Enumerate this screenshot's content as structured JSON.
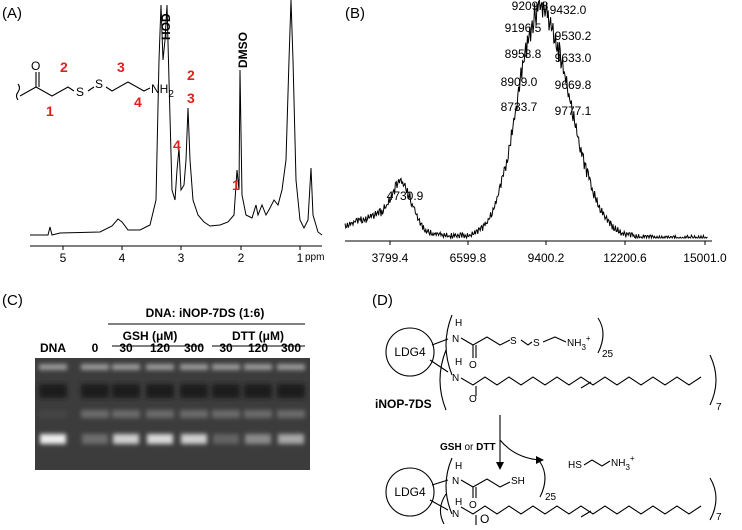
{
  "panel_a": {
    "label": "(A)",
    "ticks": [
      "5",
      "4",
      "3",
      "2",
      "1"
    ],
    "unit": "ppm",
    "solvent_peaks": [
      "HOD",
      "DMSO"
    ],
    "peak_numbers": [
      "2",
      "3",
      "4",
      "1"
    ],
    "structure": {
      "carbonyl": "O",
      "sulfur_1": "S",
      "sulfur_2": "S",
      "amine": "NH",
      "amine_sub": "2",
      "positions": [
        "1",
        "2",
        "3",
        "4"
      ]
    }
  },
  "panel_b": {
    "label": "(B)",
    "ticks": [
      "3799.4",
      "6599.8",
      "9400.2",
      "12200.6",
      "15001.0"
    ],
    "peaks": [
      "4730.9",
      "9209.8",
      "9432.0",
      "9196.5",
      "9530.2",
      "8958.8",
      "9633.0",
      "8909.0",
      "9669.8",
      "8733.7",
      "9777.1"
    ]
  },
  "panel_c": {
    "label": "(C)",
    "header": "DNA: iNOP-7DS (1:6)",
    "groups": [
      "GSH (μM)",
      "DTT (μM)"
    ],
    "lanes": [
      "DNA",
      "0",
      "30",
      "120",
      "300",
      "30",
      "120",
      "300"
    ]
  },
  "panel_d": {
    "label": "(D)",
    "reactant": {
      "core": "LDG4",
      "h1": "H",
      "n1": "N",
      "o1": "O",
      "s1": "S",
      "s2": "S",
      "amine": "NH",
      "amine_sub": "3",
      "charge": "+",
      "count1": "25",
      "h2": "H",
      "n2": "N",
      "o2": "O",
      "count2": "7",
      "name": "iNOP-7DS"
    },
    "reagents": [
      "GSH",
      "or",
      "DTT"
    ],
    "byproduct": {
      "thiol": "HS",
      "amine": "NH",
      "amine_sub": "3",
      "charge": "+"
    },
    "product": {
      "core": "LDG4",
      "h1": "H",
      "n1": "N",
      "o1": "O",
      "thiol": "SH",
      "count1": "25",
      "h2": "H",
      "n2": "N",
      "o2": "O",
      "count2": "7"
    }
  }
}
